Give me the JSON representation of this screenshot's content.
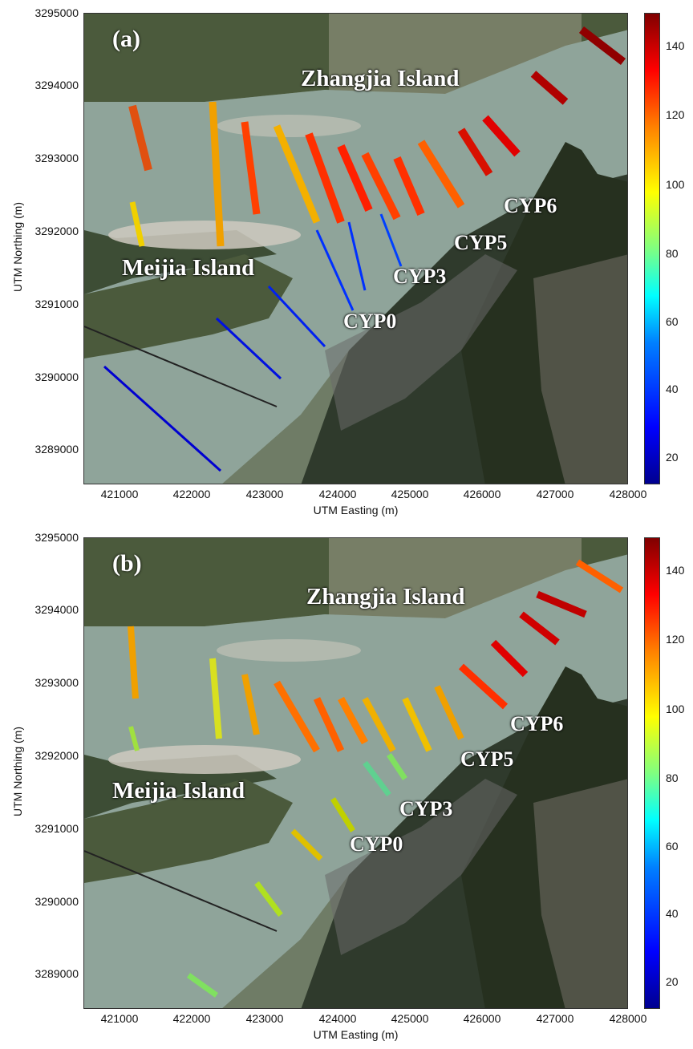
{
  "colorbar": {
    "ticks": [
      "140",
      "120",
      "100",
      "80",
      "60",
      "40",
      "20"
    ],
    "colors": [
      "#00008f",
      "#0000ff",
      "#0080ff",
      "#00ffff",
      "#80ff80",
      "#ffff00",
      "#ff8000",
      "#ff0000",
      "#800000"
    ]
  },
  "axes": {
    "ylabel": "UTM Northing (m)",
    "xlabel": "UTM Easting (m)",
    "yticks": [
      "3295000",
      "3294000",
      "3293000",
      "3292000",
      "3291000",
      "3290000",
      "3289000"
    ],
    "xticks": [
      "421000",
      "422000",
      "423000",
      "424000",
      "425000",
      "426000",
      "427000",
      "428000"
    ]
  },
  "places": {
    "zhangjia": "Zhangjia Island",
    "meijia": "Meijia Island",
    "cyp0": "CYP0",
    "cyp3": "CYP3",
    "cyp5": "CYP5",
    "cyp6": "CYP6"
  },
  "panels": [
    {
      "letter": "(a)"
    },
    {
      "letter": "(b)"
    }
  ],
  "map_colors": {
    "river": "#8fa49a",
    "farmland": "#4b5a3c",
    "mountain": "#2f3a2c",
    "sandbar": "#cfcac0",
    "town": "#6a6a6a"
  }
}
